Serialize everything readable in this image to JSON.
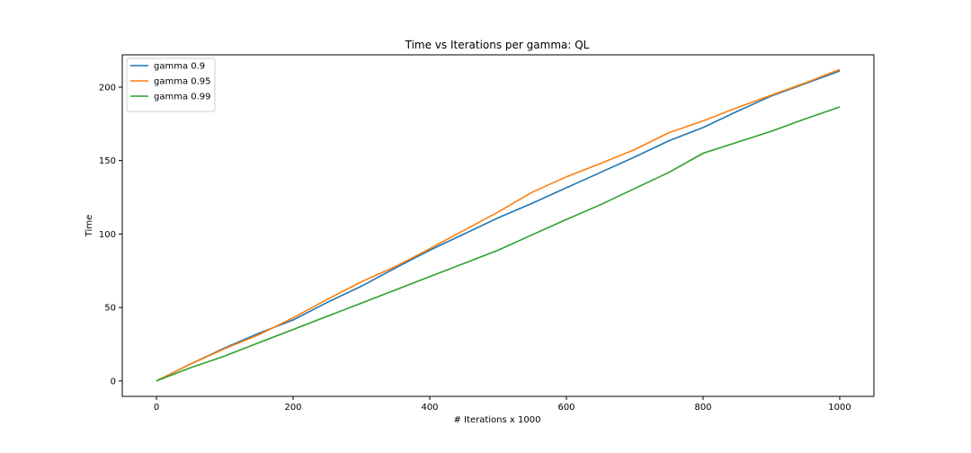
{
  "chart_data": {
    "type": "line",
    "title": "Time vs Iterations per gamma: QL",
    "xlabel": "# Iterations x 1000",
    "ylabel": "Time",
    "xlim": [
      -50,
      1050
    ],
    "ylim": [
      -10.5,
      222
    ],
    "xticks": [
      0,
      200,
      400,
      600,
      800,
      1000
    ],
    "yticks": [
      0,
      50,
      100,
      150,
      200
    ],
    "grid": false,
    "legend_position": "top-left",
    "x": [
      0,
      50,
      100,
      150,
      200,
      250,
      300,
      350,
      400,
      450,
      500,
      550,
      600,
      650,
      700,
      750,
      800,
      850,
      900,
      950,
      1000
    ],
    "series": [
      {
        "name": "gamma 0.9",
        "color": "#1f77b4",
        "values": [
          0,
          11.5,
          22.5,
          32.5,
          41.5,
          53.5,
          64.5,
          77,
          89,
          100,
          111,
          121,
          131.5,
          142,
          152.5,
          163.5,
          172.5,
          183.5,
          194,
          202.5,
          211
        ]
      },
      {
        "name": "gamma 0.95",
        "color": "#ff7f0e",
        "values": [
          0,
          11.5,
          22,
          31.5,
          43,
          55.5,
          67.5,
          78,
          90,
          102.5,
          115,
          128.5,
          139,
          148,
          157.5,
          169,
          177,
          186,
          194.5,
          203,
          212
        ]
      },
      {
        "name": "gamma 0.99",
        "color": "#2ca02c",
        "values": [
          0,
          9,
          17,
          26,
          35,
          44,
          53,
          62,
          71,
          80,
          89,
          99.5,
          110,
          120,
          131,
          142,
          155,
          162.5,
          170,
          178.5,
          186.5
        ]
      }
    ]
  }
}
